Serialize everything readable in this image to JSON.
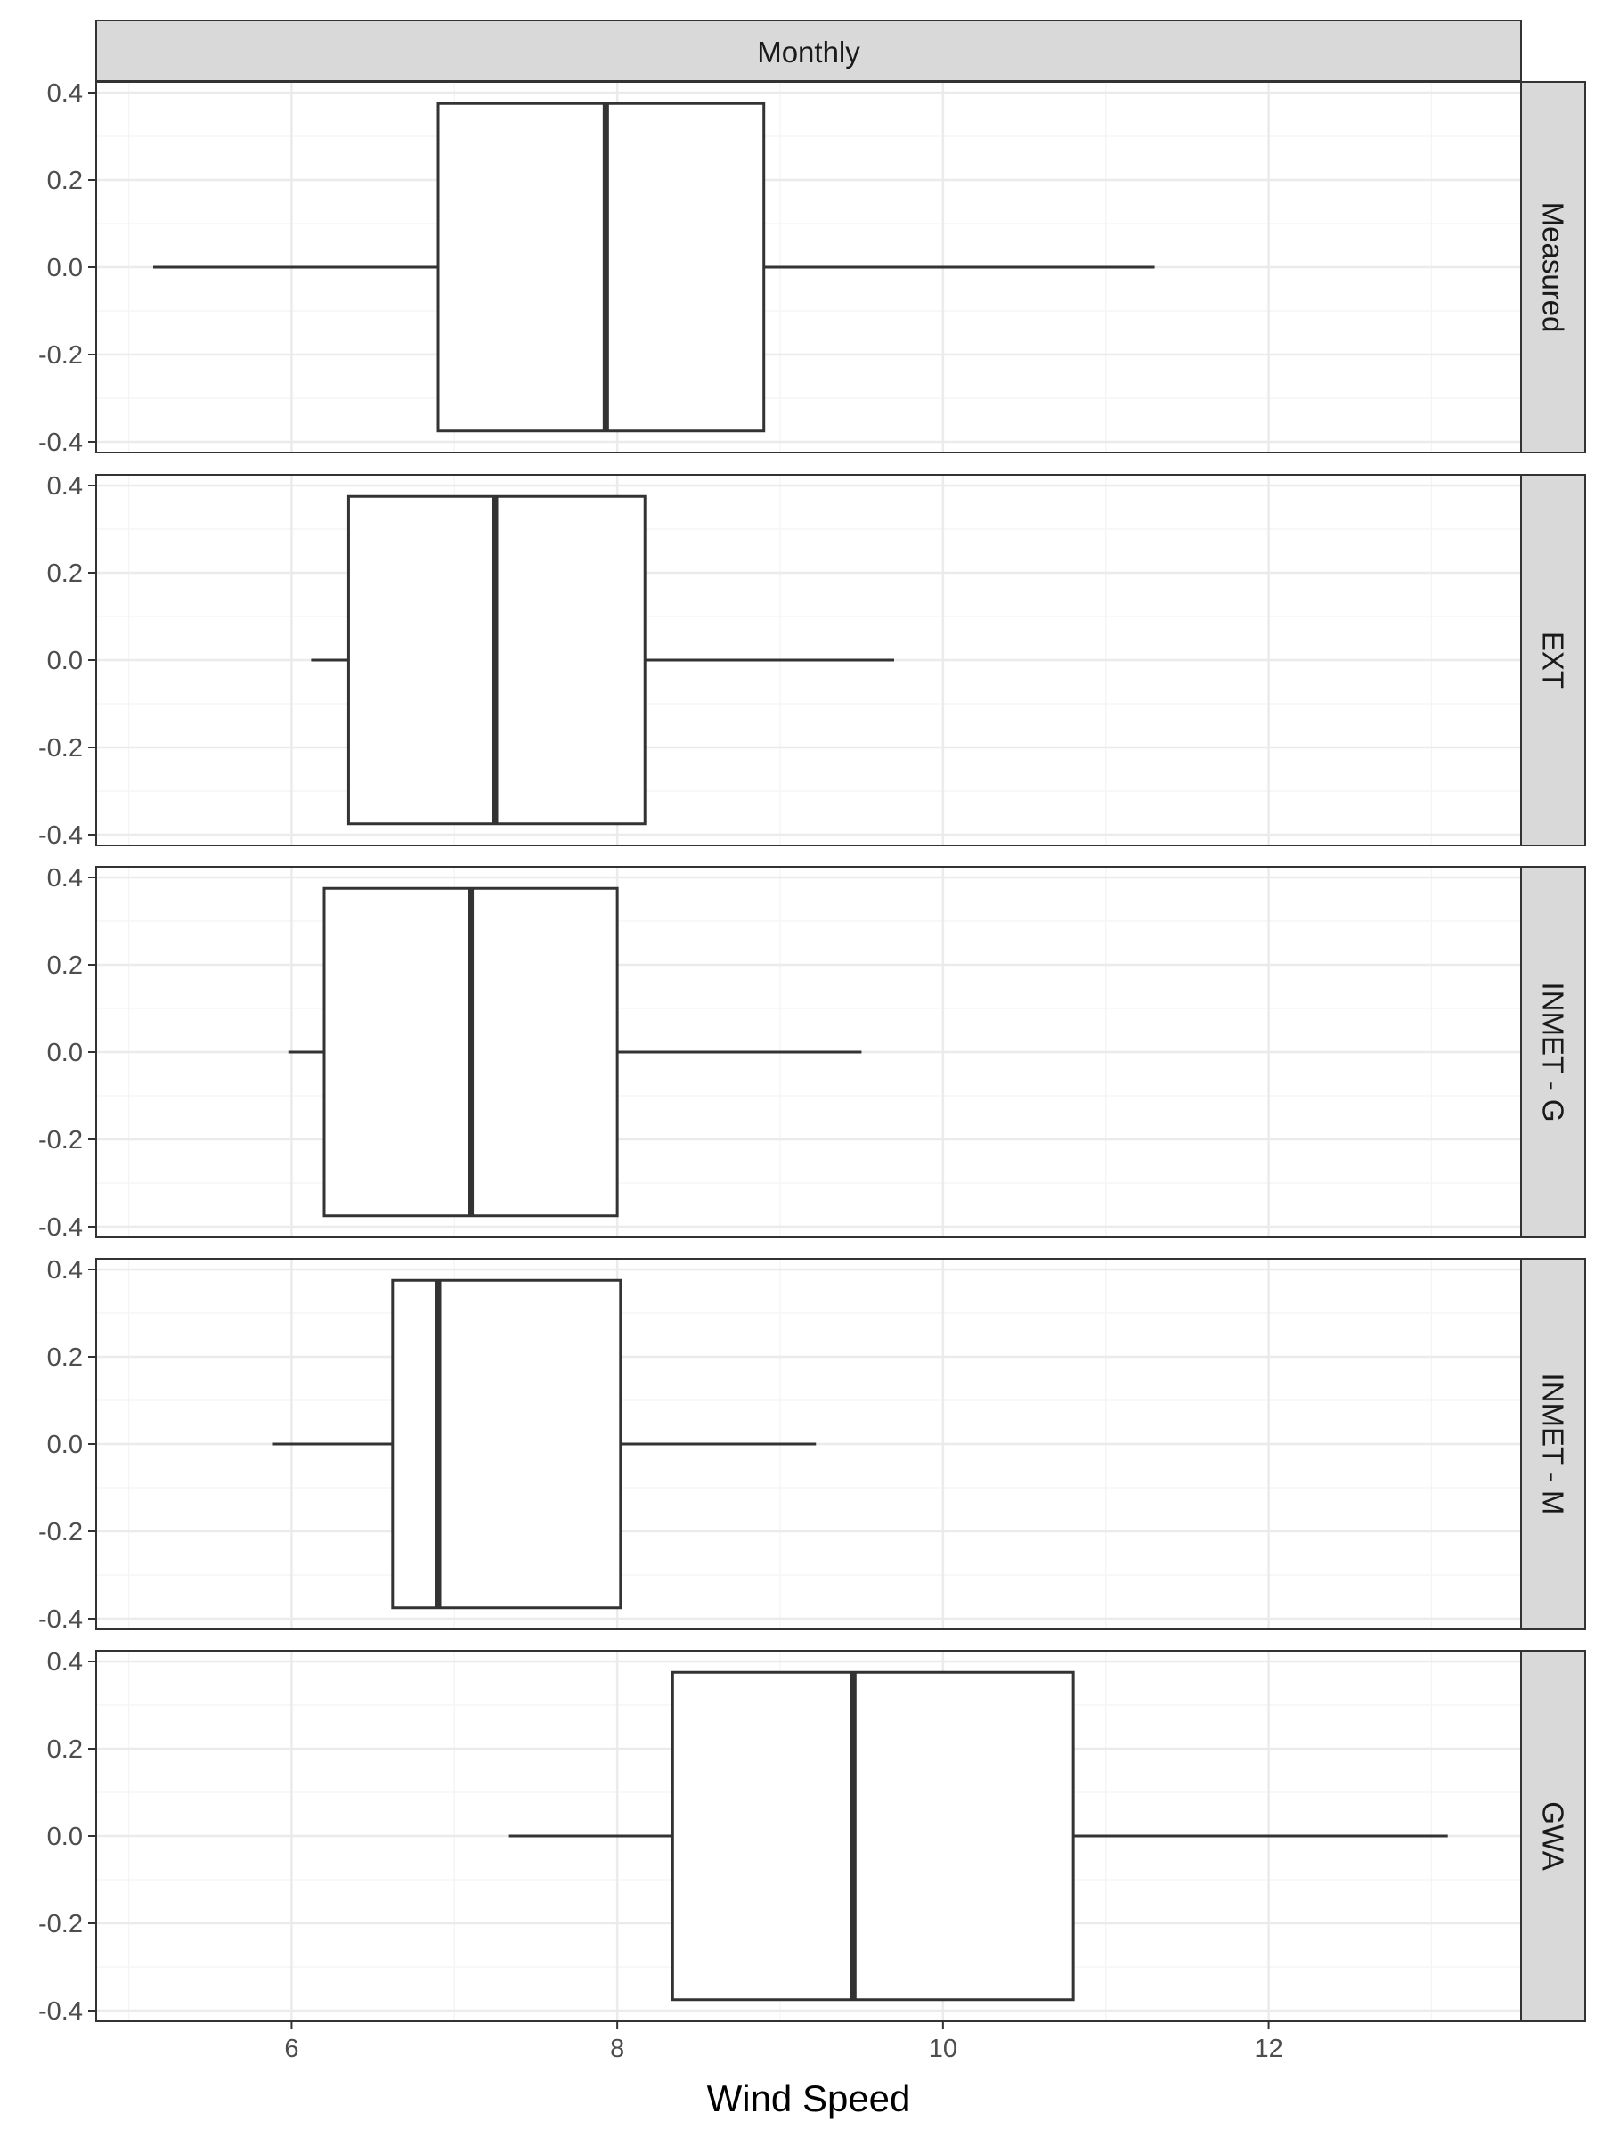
{
  "chart_data": {
    "type": "boxplot",
    "facet_title": "Monthly",
    "xlabel": "Wind Speed",
    "ylabel": "",
    "xlim": [
      4.8,
      13.55
    ],
    "ylim": [
      -0.4,
      0.4
    ],
    "x_ticks": [
      6,
      8,
      10,
      12
    ],
    "x_tick_labels": [
      "6",
      "8",
      "10",
      "12"
    ],
    "y_ticks": [
      0.4,
      0.2,
      0.0,
      -0.2,
      -0.4
    ],
    "y_tick_labels": [
      "0.4",
      "0.2",
      "0.0",
      "-0.2",
      "-0.4"
    ],
    "grid": true,
    "colors": {
      "panel_border": "#333333",
      "strip_fill": "#d9d9d9",
      "grid_major": "#ebebeb",
      "grid_minor": "#f5f5f5",
      "box_fill": "#ffffff"
    },
    "panels": [
      {
        "name": "Measured",
        "min": 5.15,
        "q1": 6.9,
        "median": 7.93,
        "q3": 8.9,
        "max": 11.3
      },
      {
        "name": "EXT",
        "min": 6.12,
        "q1": 6.35,
        "median": 7.25,
        "q3": 8.17,
        "max": 9.7
      },
      {
        "name": "INMET - G",
        "min": 5.98,
        "q1": 6.2,
        "median": 7.1,
        "q3": 8.0,
        "max": 9.5
      },
      {
        "name": "INMET - M",
        "min": 5.88,
        "q1": 6.62,
        "median": 6.9,
        "q3": 8.02,
        "max": 9.22
      },
      {
        "name": "GWA",
        "min": 7.33,
        "q1": 8.34,
        "median": 9.45,
        "q3": 10.8,
        "max": 13.1
      }
    ]
  }
}
